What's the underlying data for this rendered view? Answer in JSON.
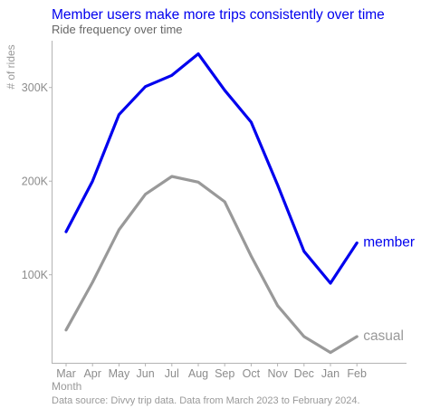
{
  "chart_data": {
    "type": "line",
    "title": "Member users make more trips consistently over time",
    "subtitle": "Ride frequency over time",
    "xlabel": "Month",
    "ylabel": "# of rides",
    "categories": [
      "Mar",
      "Apr",
      "May",
      "Jun",
      "Jul",
      "Aug",
      "Sep",
      "Oct",
      "Nov",
      "Dec",
      "Jan",
      "Feb"
    ],
    "y_ticks": [
      100000,
      200000,
      300000
    ],
    "y_tick_labels": [
      "100K",
      "200K",
      "300K"
    ],
    "ylim": [
      5000,
      350000
    ],
    "grid": false,
    "legend": "none (direct series labels at line ends)",
    "caption": "Data source: Divvy trip data. Data from March 2023 to February 2024.",
    "series": [
      {
        "name": "member",
        "color": "#0000ee",
        "values": [
          146000,
          200000,
          271000,
          301000,
          313000,
          336000,
          297000,
          263000,
          196000,
          125000,
          91000,
          134000
        ]
      },
      {
        "name": "casual",
        "color": "#999999",
        "values": [
          41000,
          92000,
          148000,
          186000,
          205000,
          199000,
          178000,
          120000,
          67000,
          34000,
          17000,
          34000
        ]
      }
    ]
  },
  "colors": {
    "title": "#0000ee",
    "subtitle": "#666666",
    "axis_text": "#8c8c8c",
    "axis_line": "#b3b3b3"
  }
}
